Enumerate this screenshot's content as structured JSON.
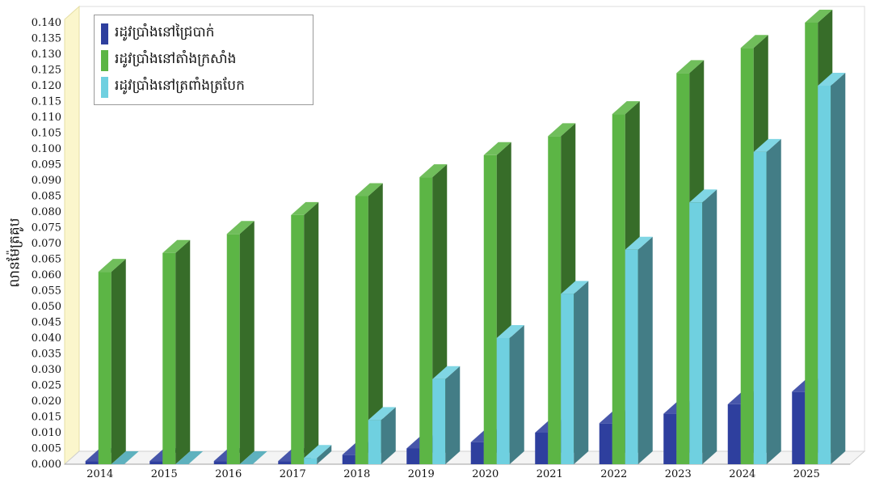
{
  "chart_data": {
    "type": "bar",
    "categories": [
      "2014",
      "2015",
      "2016",
      "2017",
      "2018",
      "2019",
      "2020",
      "2021",
      "2022",
      "2023",
      "2024",
      "2025"
    ],
    "series": [
      {
        "name": "រដូវប្រាំងនៅជ្រៃបាក់",
        "color": "#2e3f9e",
        "values": [
          0.001,
          0.001,
          0.001,
          0.001,
          0.003,
          0.005,
          0.007,
          0.01,
          0.013,
          0.016,
          0.019,
          0.023
        ]
      },
      {
        "name": "រដូវប្រាំងនៅតាំងក្រសាំង",
        "color": "#5cb545",
        "values": [
          0.061,
          0.067,
          0.073,
          0.079,
          0.085,
          0.091,
          0.098,
          0.104,
          0.111,
          0.124,
          0.132,
          0.14
        ]
      },
      {
        "name": "រដូវប្រាំងនៅត្រពាំងត្របែក",
        "color": "#6fd0e0",
        "values": [
          0.0,
          0.0,
          0.0,
          0.002,
          0.014,
          0.027,
          0.04,
          0.054,
          0.068,
          0.083,
          0.099,
          0.12
        ]
      }
    ],
    "yticks": [
      "0.000",
      "0.005",
      "0.010",
      "0.015",
      "0.020",
      "0.025",
      "0.030",
      "0.035",
      "0.040",
      "0.045",
      "0.050",
      "0.055",
      "0.060",
      "0.065",
      "0.070",
      "0.075",
      "0.080",
      "0.085",
      "0.090",
      "0.095",
      "0.100",
      "0.105",
      "0.110",
      "0.115",
      "0.120",
      "0.125",
      "0.130",
      "0.135",
      "0.140"
    ],
    "ylim": [
      0,
      0.14
    ],
    "ylabel": "លានម៉ែត្រគូប",
    "xlabel": "",
    "title": "",
    "legend_position": "top-left",
    "grid": false
  }
}
